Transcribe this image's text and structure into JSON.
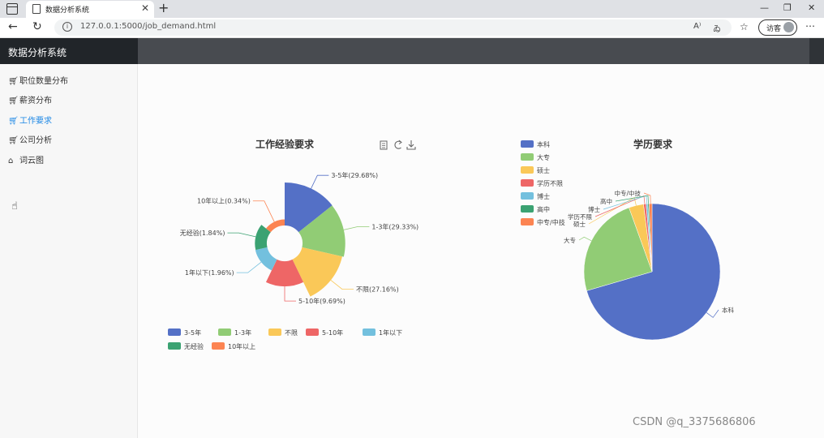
{
  "browser": {
    "tab_title": "数据分析系统",
    "url": "127.0.0.1:5000/job_demand.html",
    "guest_label": "访客"
  },
  "app": {
    "brand": "数据分析系统",
    "nav": [
      {
        "label": "职位数量分布",
        "icon": "cart-icon"
      },
      {
        "label": "薪资分布",
        "icon": "cart-icon"
      },
      {
        "label": "工作要求",
        "icon": "cart-icon",
        "active": true
      },
      {
        "label": "公司分析",
        "icon": "cart-icon"
      },
      {
        "label": "词云图",
        "icon": "home-icon"
      }
    ]
  },
  "chart_data": [
    {
      "type": "pie",
      "variant": "rose",
      "title": "工作经验要求",
      "categories": [
        "3-5年",
        "1-3年",
        "不限",
        "5-10年",
        "1年以下",
        "无经验",
        "10年以上"
      ],
      "values": [
        29.68,
        29.33,
        27.16,
        9.69,
        1.96,
        1.84,
        0.34
      ],
      "data_labels": [
        "3-5年(29.68%)",
        "1-3年(29.33%)",
        "不限(27.16%)",
        "5-10年(9.69%)",
        "1年以下(1.96%)",
        "无经验(1.84%)",
        "10年以上(0.34%)"
      ],
      "colors": [
        "#5470c6",
        "#91cc75",
        "#fac858",
        "#ee6666",
        "#73c0de",
        "#3ba272",
        "#fc8452"
      ],
      "legend": "bottom"
    },
    {
      "type": "pie",
      "title": "学历要求",
      "categories": [
        "本科",
        "大专",
        "硕士",
        "学历不限",
        "博士",
        "高中",
        "中专/中技"
      ],
      "values": [
        70.5,
        24.0,
        3.5,
        0.6,
        0.4,
        0.3,
        0.7
      ],
      "colors": [
        "#5470c6",
        "#91cc75",
        "#fac858",
        "#ee6666",
        "#73c0de",
        "#3ba272",
        "#fc8452"
      ],
      "legend": "top-left"
    }
  ],
  "watermark": "CSDN @q_3375686806"
}
